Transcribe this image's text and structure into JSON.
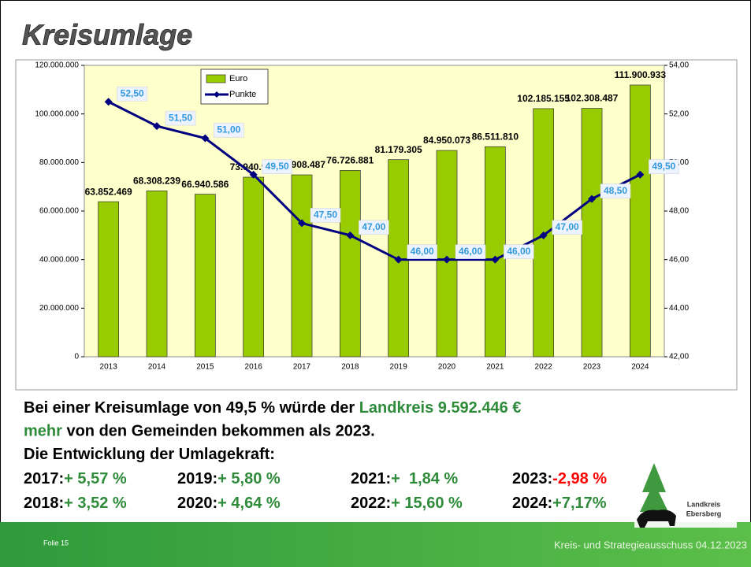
{
  "title": "Kreisumlage",
  "chart_data": {
    "type": "bar_line",
    "categories": [
      "2013",
      "2014",
      "2015",
      "2016",
      "2017",
      "2018",
      "2019",
      "2020",
      "2021",
      "2022",
      "2023",
      "2024"
    ],
    "series": [
      {
        "name": "Euro",
        "color": "#99cc00",
        "values": [
          63852469,
          68308239,
          66940586,
          73940969,
          74908487,
          76726881,
          81179305,
          84950073,
          86511810,
          102185155,
          102308487,
          111900933
        ],
        "value_labels": [
          "63.852.469",
          "68.308.239",
          "66.940.586",
          "73.940.969",
          "74.908.487",
          "76.726.881",
          "81.179.305",
          "84.950.073",
          "86.511.810",
          "102.185.155",
          "102.308.487",
          "111.900.933"
        ]
      },
      {
        "name": "Punkte",
        "color": "#000080",
        "axis": "y2",
        "values": [
          52.5,
          51.5,
          51.0,
          49.5,
          47.5,
          47.0,
          46.0,
          46.0,
          46.0,
          47.0,
          48.5,
          49.5
        ],
        "value_labels": [
          "52,50",
          "51,50",
          "51,00",
          "49,50",
          "47,50",
          "47,00",
          "46,00",
          "46,00",
          "46,00",
          "47,00",
          "48,50",
          "49,50"
        ]
      }
    ],
    "ylim": [
      0,
      120000000
    ],
    "yticks": [
      0,
      {
        "value": 20000000,
        "label": "20.000.000"
      },
      {
        "value": 40000000,
        "label": "40.000.000"
      },
      {
        "value": 60000000,
        "label": "60.000.000"
      },
      {
        "value": 80000000,
        "label": "80.000.000"
      },
      {
        "value": 100000000,
        "label": "100.000.000"
      },
      {
        "value": 120000000,
        "label": "120.000.000"
      }
    ],
    "y2lim": [
      42,
      54
    ],
    "y2ticks": [
      {
        "value": 42,
        "label": "42,00"
      },
      {
        "value": 44,
        "label": "44,00"
      },
      {
        "value": 46,
        "label": "46,00"
      },
      {
        "value": 48,
        "label": "48,00"
      },
      {
        "value": 50,
        "label": "50,00"
      },
      {
        "value": 52,
        "label": "52,00"
      },
      {
        "value": 54,
        "label": "54,00"
      }
    ],
    "legend": "top-left"
  },
  "summary": [
    [
      {
        "text": "Bei einer Kreisumlage von 49,5 % würde der ",
        "color": "#000000"
      },
      {
        "text": "Landkreis 9.592.446 €",
        "color": "#2e8b3a"
      }
    ],
    [
      {
        "text": "mehr",
        "color": "#2e8b3a"
      },
      {
        "text": " von den Gemeinden bekommen als 2023.",
        "color": "#000000"
      }
    ],
    [
      {
        "text": "Die Entwicklung der Umlagekraft:",
        "color": "#000000"
      }
    ]
  ],
  "growth": [
    {
      "year": "2017:",
      "change": "+ 5,57 %",
      "color": "#2e8b3a"
    },
    {
      "year": "2018:",
      "change": "+ 3,52 %",
      "color": "#2e8b3a"
    },
    {
      "year": "2019:",
      "change": "+ 5,80 %",
      "color": "#2e8b3a"
    },
    {
      "year": "2020:",
      "change": "+ 4,64 %",
      "color": "#2e8b3a"
    },
    {
      "year": "2021:",
      "change": "+  1,84 %",
      "color": "#2e8b3a"
    },
    {
      "year": "2022:",
      "change": "+ 15,60 %",
      "color": "#2e8b3a"
    },
    {
      "year": "2023:",
      "change": "-2,98 %",
      "color": "#ff0000"
    },
    {
      "year": "2024:",
      "change": "+7,17%",
      "color": "#2e8b3a"
    }
  ],
  "logo": {
    "line1": "Landkreis",
    "line2": "Ebersberg"
  },
  "footer": {
    "slide": "Folie 15",
    "meeting": "Kreis- und Strategieausschuss 04.12.2023"
  }
}
